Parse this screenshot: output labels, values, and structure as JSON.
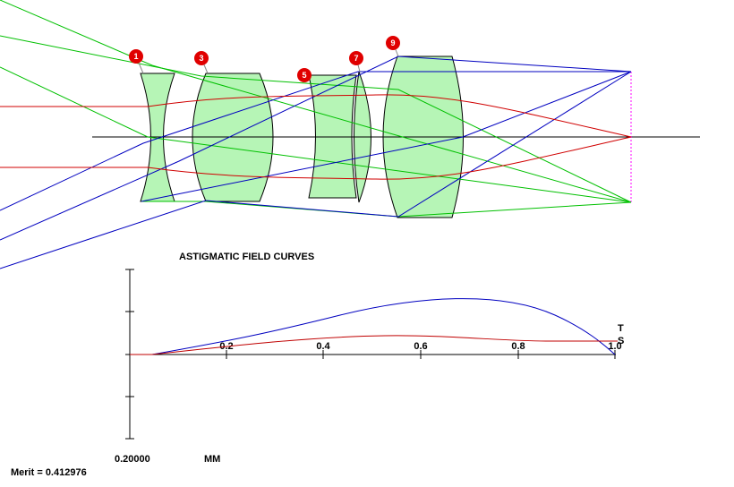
{
  "diagram": {
    "lens_numbers": [
      "1",
      "3",
      "5",
      "7",
      "9"
    ],
    "colors": {
      "lens_fill": "#b6f5b6",
      "ray_blue": "#0000c0",
      "ray_green": "#00c000",
      "ray_red": "#d00000",
      "marker": "#e00000",
      "image_plane": "#ff00ff"
    }
  },
  "field_curves": {
    "title": "ASTIGMATIC FIELD CURVES",
    "x_ticks": [
      "0.2",
      "0.4",
      "0.6",
      "0.8",
      "1.0"
    ],
    "x_range": [
      0,
      1.0
    ],
    "scale_value": "0.20000",
    "unit": "MM",
    "t_label": "T",
    "s_label": "S",
    "tangential_color": "#0000c0",
    "sagittal_color": "#c00000"
  },
  "merit_text": "Merit = 0.412976"
}
